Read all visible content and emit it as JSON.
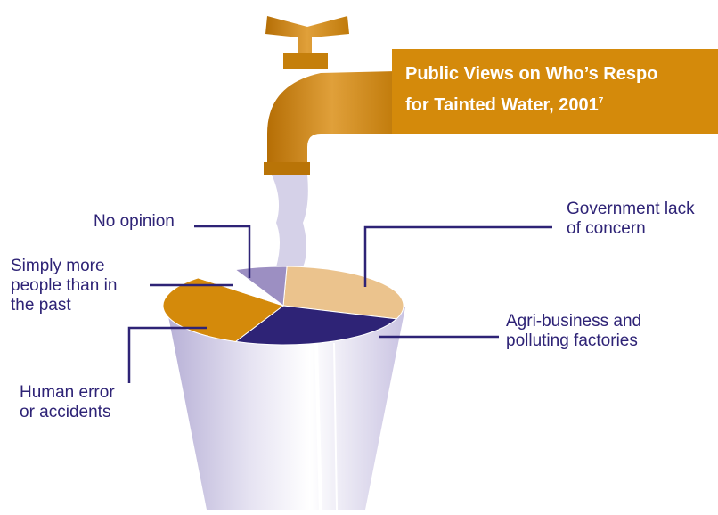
{
  "chart_data": {
    "type": "pie",
    "title": [
      "Public Views on Who’s Respo",
      "for Tainted Water, 2001"
    ],
    "footnote": "7",
    "categories": [
      "Government lack\nof concern",
      "Agri-business and\npolluting factories",
      "Human error\nor accidents",
      "Simply more\npeople than in\nthe past",
      "No opinion"
    ],
    "values": [
      30,
      26,
      31,
      6,
      7
    ],
    "colors": [
      "#ebc38d",
      "#2e2376",
      "#d48a0b",
      "#ffffff",
      "#9c8fc2"
    ]
  }
}
